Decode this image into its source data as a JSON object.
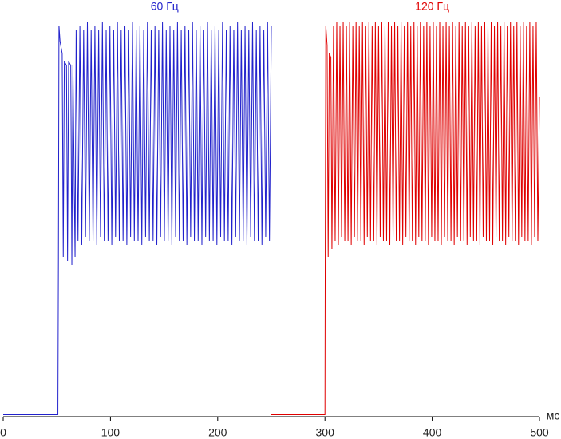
{
  "chart_data": {
    "type": "line",
    "x_label": "мс",
    "xlim": [
      0,
      500
    ],
    "xticks": [
      0,
      100,
      200,
      300,
      400,
      500
    ],
    "ylim": [
      0,
      100
    ],
    "series": [
      {
        "name": "60 Гц",
        "color": "#2222cc",
        "x": [
          0,
          51,
          51.5,
          52,
          53,
          55,
          56,
          57,
          59,
          60,
          61,
          63,
          64,
          65,
          67,
          68,
          69.75,
          71.5,
          73.25,
          75,
          76.75,
          78.5,
          80.25,
          82,
          83.75,
          85.5,
          87.25,
          89,
          90.75,
          92.5,
          94.25,
          96,
          97.75,
          99.5,
          101.25,
          103,
          104.75,
          106.5,
          108.25,
          110,
          111.75,
          113.5,
          115.25,
          117,
          118.75,
          120.5,
          122.25,
          124,
          125.75,
          127.5,
          129.25,
          131,
          132.75,
          134.5,
          136.25,
          138,
          139.75,
          141.5,
          143.25,
          145,
          146.75,
          148.5,
          150.25,
          152,
          153.75,
          155.5,
          157.25,
          159,
          160.75,
          162.5,
          164.25,
          166,
          167.75,
          169.5,
          171.25,
          173,
          174.75,
          176.5,
          178.25,
          180,
          181.75,
          183.5,
          185.25,
          187,
          188.75,
          190.5,
          192.25,
          194,
          195.75,
          197.5,
          199.25,
          201,
          202.75,
          204.5,
          206.25,
          208,
          209.75,
          211.5,
          213.25,
          215,
          216.75,
          218.5,
          220.25,
          222,
          223.75,
          225.5,
          227.25,
          229,
          230.75,
          232.5,
          234.25,
          236,
          237.75,
          239.5,
          241.25,
          243,
          244.75,
          246.5,
          248.25,
          250
        ],
        "values": [
          0.5,
          0.5,
          40,
          98,
          94,
          91,
          40,
          89,
          88,
          39,
          89,
          88,
          38,
          88,
          40,
          97,
          44,
          98,
          43,
          97,
          45,
          99,
          44,
          97,
          44,
          98,
          43,
          97,
          45,
          99,
          44,
          97,
          44,
          98,
          43,
          97,
          45,
          99,
          44,
          97,
          44,
          98,
          43,
          97,
          45,
          99,
          44,
          97,
          44,
          98,
          43,
          97,
          45,
          99,
          44,
          97,
          44,
          98,
          43,
          97,
          45,
          99,
          44,
          97,
          44,
          98,
          43,
          97,
          45,
          99,
          44,
          97,
          44,
          98,
          43,
          97,
          45,
          99,
          44,
          97,
          44,
          98,
          43,
          97,
          45,
          99,
          44,
          97,
          44,
          98,
          43,
          97,
          45,
          99,
          44,
          97,
          44,
          98,
          43,
          97,
          45,
          99,
          44,
          97,
          44,
          98,
          43,
          97,
          45,
          99,
          44,
          97,
          44,
          98,
          43,
          97,
          45,
          99,
          44,
          98
        ]
      },
      {
        "name": "120 Гц",
        "color": "#e00000",
        "x": [
          250,
          300,
          300.3,
          300.8,
          302,
          303,
          304,
          305.5,
          306.5,
          308,
          309.5,
          311,
          312.5,
          314,
          315.5,
          317,
          318.5,
          320,
          321.5,
          323,
          324.5,
          326,
          327.5,
          329,
          330.5,
          332,
          333.5,
          335,
          336.5,
          338,
          339.5,
          341,
          342.5,
          344,
          345.5,
          347,
          348.5,
          350,
          351.5,
          353,
          354.5,
          356,
          357.5,
          359,
          360.5,
          362,
          363.5,
          365,
          366.5,
          368,
          369.5,
          371,
          372.5,
          374,
          375.5,
          377,
          378.5,
          380,
          381.5,
          383,
          384.5,
          386,
          387.5,
          389,
          390.5,
          392,
          393.5,
          395,
          396.5,
          398,
          399.5,
          401,
          402.5,
          404,
          405.5,
          407,
          408.5,
          410,
          411.5,
          413,
          414.5,
          416,
          417.5,
          419,
          420.5,
          422,
          423.5,
          425,
          426.5,
          428,
          429.5,
          431,
          432.5,
          434,
          435.5,
          437,
          438.5,
          440,
          441.5,
          443,
          444.5,
          446,
          447.5,
          449,
          450.5,
          452,
          453.5,
          455,
          456.5,
          458,
          459.5,
          461,
          462.5,
          464,
          465.5,
          467,
          468.5,
          470,
          471.5,
          473,
          474.5,
          476,
          477.5,
          479,
          480.5,
          482,
          483.5,
          485,
          486.5,
          488,
          489.5,
          491,
          492.5,
          494,
          495.5,
          497,
          498.5,
          500
        ],
        "values": [
          0.5,
          0.5,
          45,
          98,
          93,
          40,
          91,
          90,
          42,
          98,
          44,
          99,
          43,
          98,
          45,
          99,
          44,
          98,
          44,
          99,
          43,
          98,
          45,
          99,
          44,
          98,
          44,
          99,
          43,
          98,
          45,
          99,
          44,
          98,
          44,
          99,
          43,
          98,
          45,
          99,
          44,
          98,
          44,
          99,
          43,
          98,
          45,
          99,
          44,
          98,
          44,
          99,
          43,
          98,
          45,
          99,
          44,
          98,
          44,
          99,
          43,
          98,
          45,
          99,
          44,
          98,
          44,
          99,
          43,
          98,
          45,
          99,
          44,
          98,
          44,
          99,
          43,
          98,
          45,
          99,
          44,
          98,
          44,
          99,
          43,
          98,
          45,
          99,
          44,
          98,
          44,
          99,
          43,
          98,
          45,
          99,
          44,
          98,
          44,
          99,
          43,
          98,
          45,
          99,
          44,
          98,
          44,
          99,
          43,
          98,
          45,
          99,
          44,
          98,
          44,
          99,
          43,
          98,
          45,
          99,
          44,
          98,
          44,
          99,
          43,
          98,
          45,
          99,
          44,
          98,
          44,
          99,
          43,
          98,
          45,
          99,
          44,
          80
        ]
      }
    ]
  }
}
